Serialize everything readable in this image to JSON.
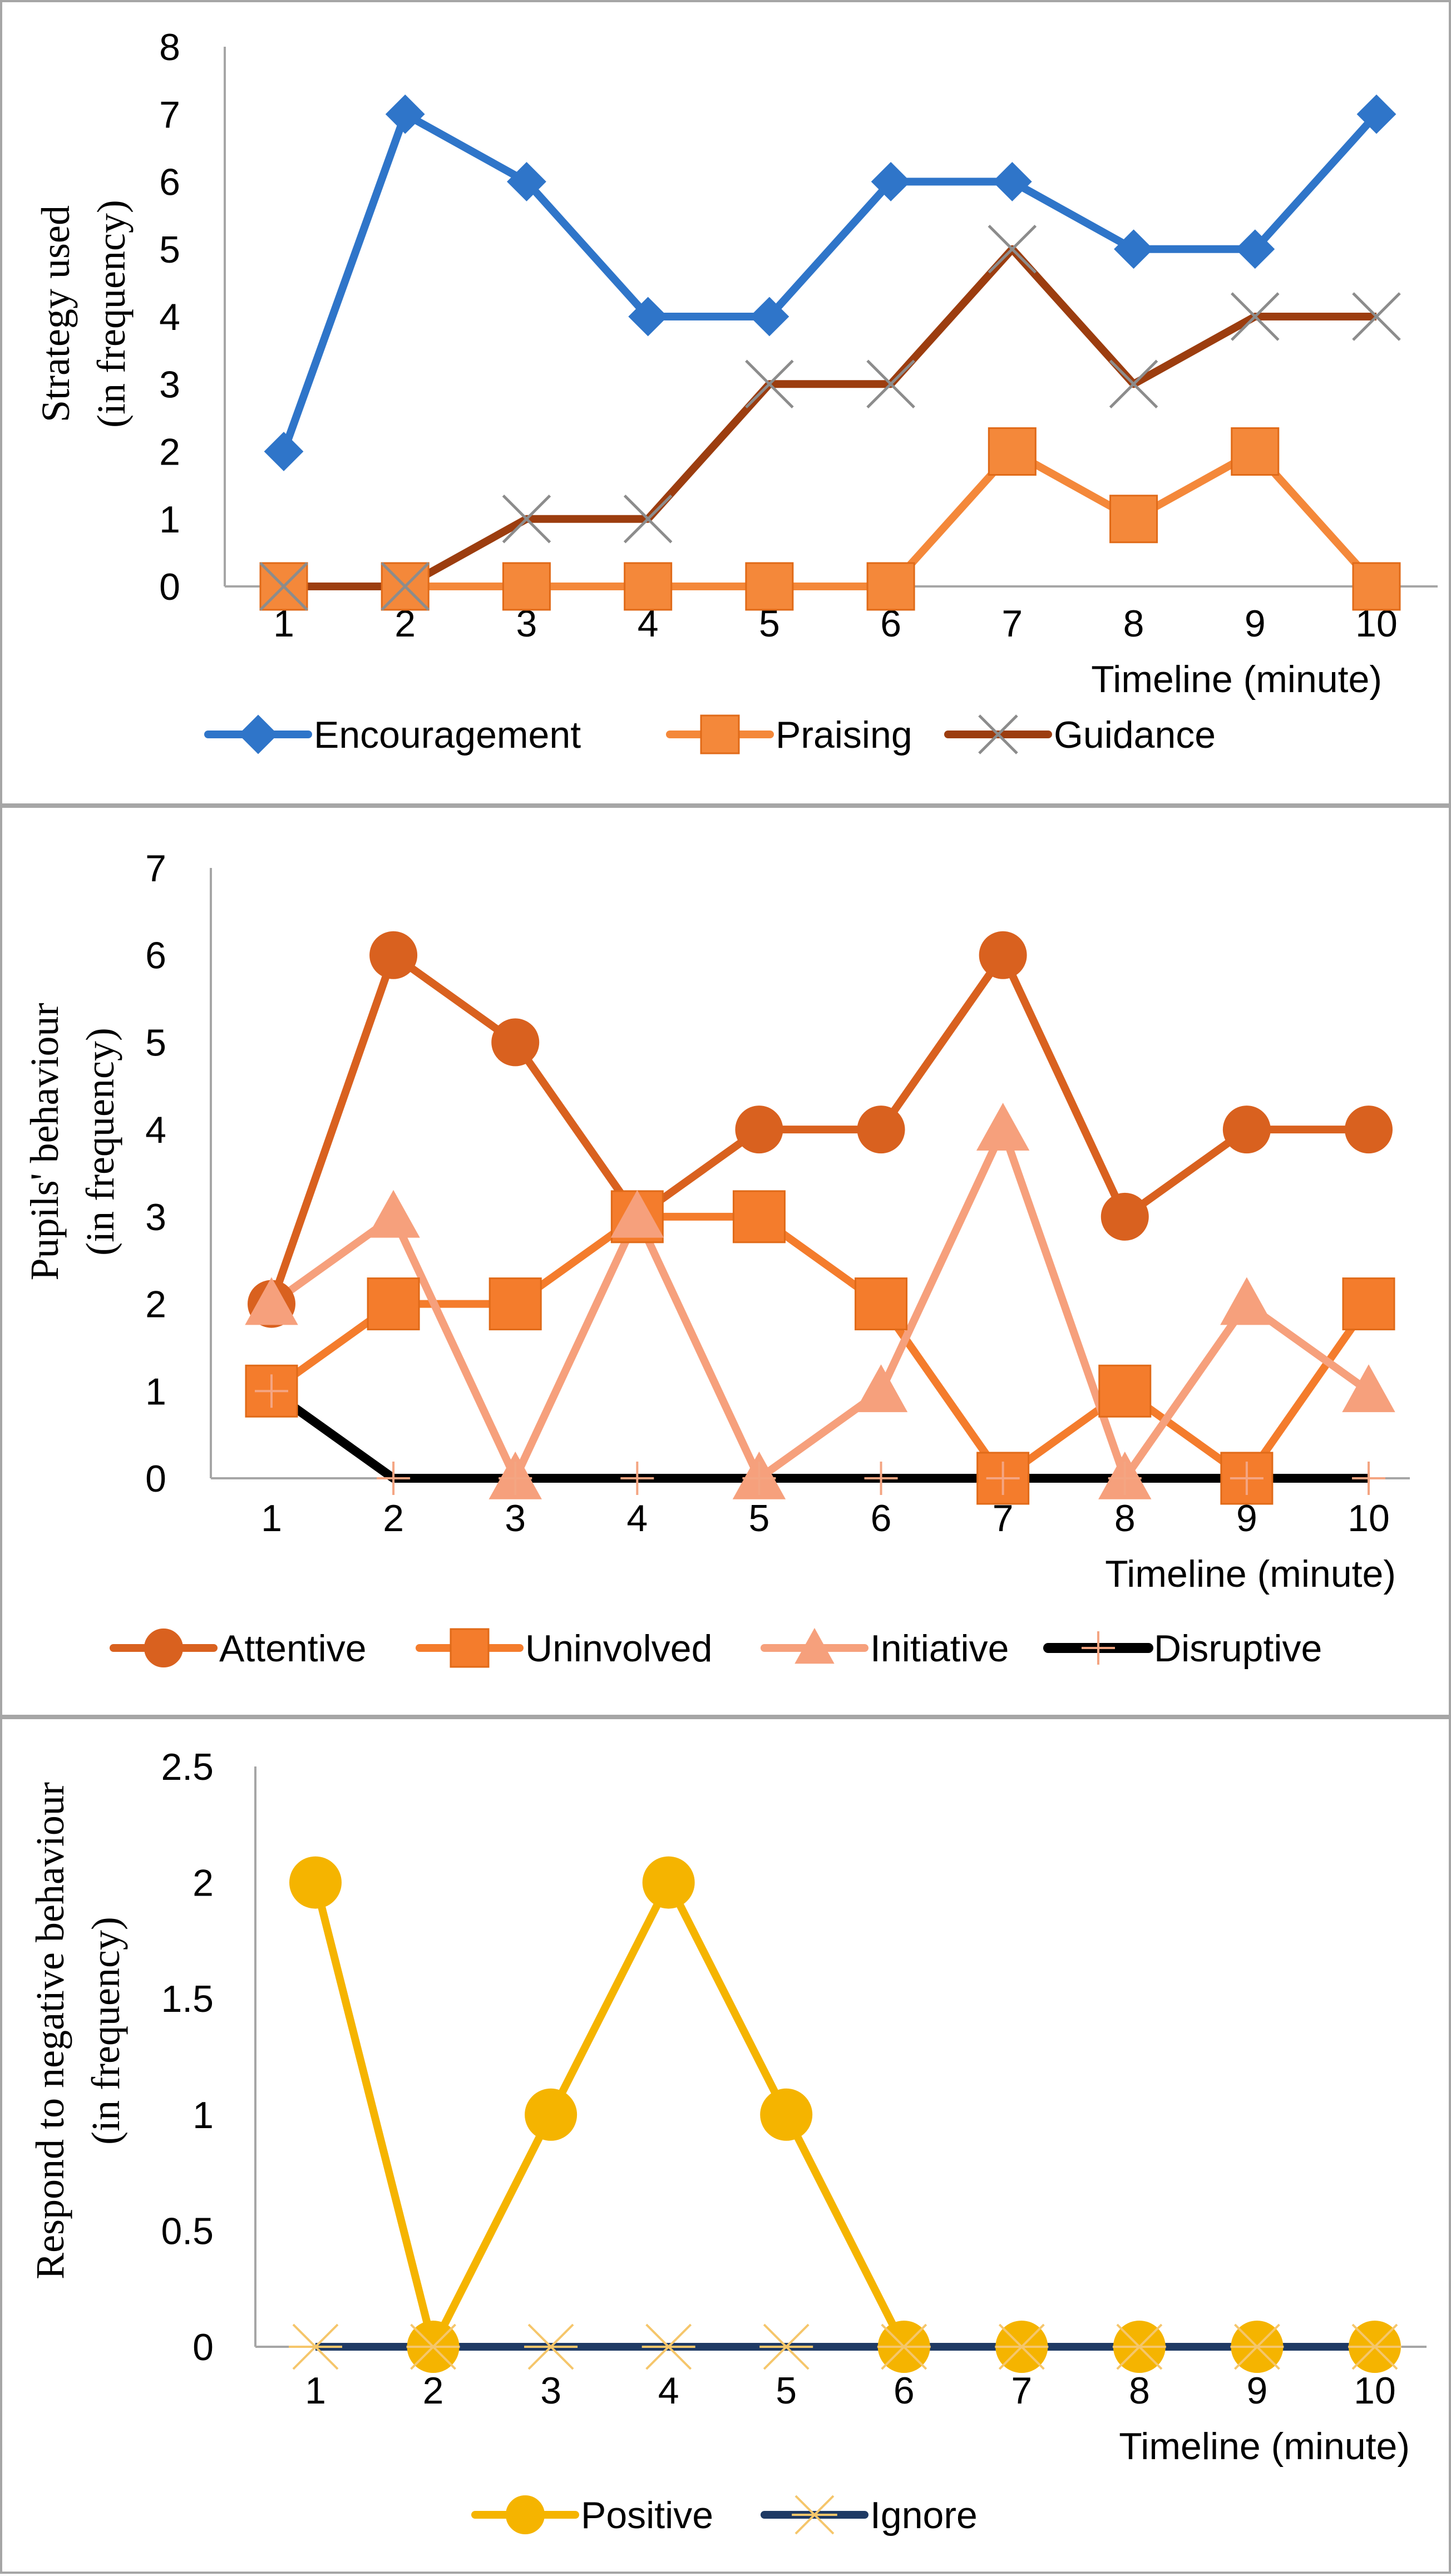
{
  "chart_data": [
    {
      "type": "line",
      "title": "",
      "xlabel": "Timeline (minute)",
      "ylabel_lines": [
        "Strategy used",
        "(in frequency)"
      ],
      "x": [
        1,
        2,
        3,
        4,
        5,
        6,
        7,
        8,
        9,
        10
      ],
      "ylim": [
        0,
        8
      ],
      "yticks": [
        0,
        1,
        2,
        3,
        4,
        5,
        6,
        7,
        8
      ],
      "grid": false,
      "legend_position": "bottom",
      "series": [
        {
          "name": "Encouragement",
          "color": "#2f75c9",
          "marker": "diamond",
          "values": [
            2,
            7,
            6,
            4,
            4,
            6,
            6,
            5,
            5,
            7
          ]
        },
        {
          "name": "Praising",
          "color": "#f4883a",
          "marker": "square",
          "values": [
            0,
            0,
            0,
            0,
            0,
            0,
            2,
            1,
            2,
            0
          ]
        },
        {
          "name": "Guidance",
          "color": "#9c3d0f",
          "marker": "x",
          "values": [
            0,
            0,
            1,
            1,
            3,
            3,
            5,
            3,
            4,
            4
          ]
        }
      ]
    },
    {
      "type": "line",
      "title": "",
      "xlabel": "Timeline (minute)",
      "ylabel_lines": [
        "Pupils' behaviour",
        "(in frequency)"
      ],
      "x": [
        1,
        2,
        3,
        4,
        5,
        6,
        7,
        8,
        9,
        10
      ],
      "ylim": [
        0,
        7
      ],
      "yticks": [
        0,
        1,
        2,
        3,
        4,
        5,
        6,
        7
      ],
      "grid": false,
      "legend_position": "bottom",
      "series": [
        {
          "name": "Attentive",
          "color": "#d9611f",
          "marker": "circle",
          "values": [
            2,
            6,
            5,
            3,
            4,
            4,
            6,
            3,
            4,
            4
          ]
        },
        {
          "name": "Uninvolved",
          "color": "#f47c2c",
          "marker": "square",
          "values": [
            1,
            2,
            2,
            3,
            3,
            2,
            0,
            1,
            0,
            2
          ]
        },
        {
          "name": "Initiative",
          "color": "#f6a07c",
          "marker": "triangle",
          "values": [
            2,
            3,
            0,
            3,
            0,
            1,
            4,
            0,
            2,
            1
          ]
        },
        {
          "name": "Disruptive",
          "color": "#000000",
          "marker": "plus",
          "values": [
            1,
            0,
            0,
            0,
            0,
            0,
            0,
            0,
            0,
            0
          ]
        }
      ]
    },
    {
      "type": "line",
      "title": "",
      "xlabel": "Timeline (minute)",
      "ylabel_lines": [
        "Respond to negative behaviour",
        "(in frequency)"
      ],
      "x": [
        1,
        2,
        3,
        4,
        5,
        6,
        7,
        8,
        9,
        10
      ],
      "ylim": [
        0,
        2.5
      ],
      "yticks": [
        0,
        0.5,
        1,
        1.5,
        2,
        2.5
      ],
      "grid": false,
      "legend_position": "bottom",
      "series": [
        {
          "name": "Positive",
          "color": "#f5b400",
          "marker": "circle",
          "values": [
            2,
            0,
            1,
            2,
            1,
            0,
            0,
            0,
            0,
            0
          ]
        },
        {
          "name": "Ignore",
          "color": "#1f3a64",
          "marker": "asterisk",
          "values": [
            0,
            0,
            0,
            0,
            0,
            0,
            0,
            0,
            0,
            0
          ]
        }
      ]
    }
  ]
}
